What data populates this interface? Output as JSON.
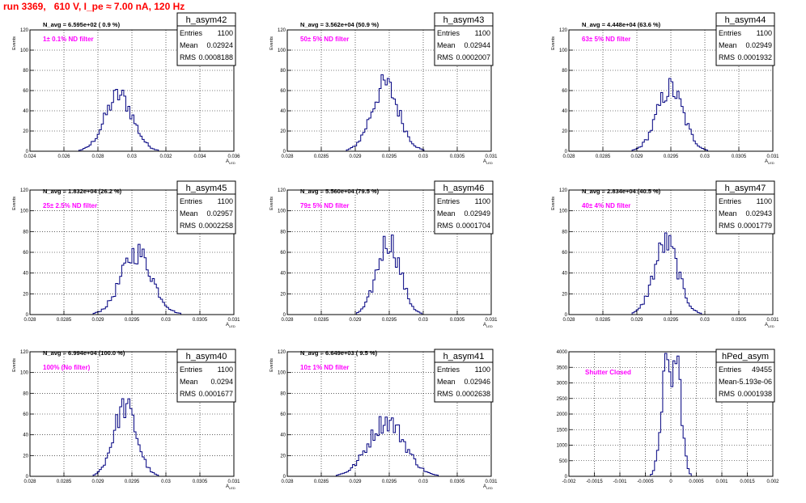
{
  "page_title": "run 3369,   610 V, I_pe ≈ 7.00 nA, 120 Hz",
  "colors": {
    "hist_line": "#000080",
    "title_red": "#ff0000",
    "annotation_magenta": "#ff00ff",
    "frame": "#000000",
    "grid": "#000000"
  },
  "chart_data": [
    {
      "type": "bar",
      "name": "h_asym42",
      "stats": {
        "entries_label": "Entries",
        "entries": "1100",
        "mean_label": "Mean",
        "mean": "0.02924",
        "rms_label": "RMS",
        "rms": "0.0008188"
      },
      "n_avg_label": "N_avg = 6.595e+02 ( 0.9 %)",
      "filter_label": "1± 0.1% ND filter",
      "xlabel": "A_{LED}",
      "ylabel": "Events",
      "xlim": [
        0.024,
        0.036
      ],
      "ylim": [
        0,
        120
      ],
      "xticks": [
        "0.024",
        "0.026",
        "0.028",
        "0.03",
        "0.032",
        "0.034",
        "0.036"
      ],
      "xtick_values": [
        0.024,
        0.026,
        0.028,
        0.03,
        0.032,
        0.034,
        0.036
      ],
      "yticks": [
        "0",
        "20",
        "40",
        "60",
        "80",
        "100",
        "120"
      ],
      "grid": true,
      "mean_value": 0.02924,
      "rms_value": 0.0008188,
      "peak": 64
    },
    {
      "type": "bar",
      "name": "h_asym43",
      "stats": {
        "entries_label": "Entries",
        "entries": "1100",
        "mean_label": "Mean",
        "mean": "0.02944",
        "rms_label": "RMS",
        "rms": "0.0002007"
      },
      "n_avg_label": "N_avg = 3.562e+04 (50.9 %)",
      "filter_label": "50± 5% ND filter",
      "xlabel": "A_{LED}",
      "ylabel": "Events",
      "xlim": [
        0.028,
        0.031
      ],
      "ylim": [
        0,
        120
      ],
      "xticks": [
        "0.028",
        "0.0285",
        "0.029",
        "0.0295",
        "0.03",
        "0.0305",
        "0.031"
      ],
      "xtick_values": [
        0.028,
        0.0285,
        0.029,
        0.0295,
        0.03,
        0.0305,
        0.031
      ],
      "yticks": [
        "0",
        "20",
        "40",
        "60",
        "80",
        "100",
        "120"
      ],
      "grid": true,
      "mean_value": 0.02944,
      "rms_value": 0.0002007,
      "peak": 76
    },
    {
      "type": "bar",
      "name": "h_asym44",
      "stats": {
        "entries_label": "Entries",
        "entries": "1100",
        "mean_label": "Mean",
        "mean": "0.02949",
        "rms_label": "RMS",
        "rms": "0.0001932"
      },
      "n_avg_label": "N_avg = 4.448e+04 (63.6 %)",
      "filter_label": "63± 5% ND filter",
      "xlabel": "A_{LED}",
      "ylabel": "Events",
      "xlim": [
        0.028,
        0.031
      ],
      "ylim": [
        0,
        120
      ],
      "xticks": [
        "0.028",
        "0.0285",
        "0.029",
        "0.0295",
        "0.03",
        "0.0305",
        "0.031"
      ],
      "xtick_values": [
        0.028,
        0.0285,
        0.029,
        0.0295,
        0.03,
        0.0305,
        0.031
      ],
      "yticks": [
        "0",
        "20",
        "40",
        "60",
        "80",
        "100",
        "120"
      ],
      "grid": true,
      "mean_value": 0.02949,
      "rms_value": 0.0001932,
      "peak": 72
    },
    {
      "type": "bar",
      "name": "h_asym45",
      "stats": {
        "entries_label": "Entries",
        "entries": "1100",
        "mean_label": "Mean",
        "mean": "0.02957",
        "rms_label": "RMS",
        "rms": "0.0002258"
      },
      "n_avg_label": "N_avg = 1.832e+04 (26.2 %)",
      "filter_label": "25± 2.5% ND filter",
      "xlabel": "A_{LED}",
      "ylabel": "Events",
      "xlim": [
        0.028,
        0.031
      ],
      "ylim": [
        0,
        120
      ],
      "xticks": [
        "0.028",
        "0.0285",
        "0.029",
        "0.0295",
        "0.03",
        "0.0305",
        "0.031"
      ],
      "xtick_values": [
        0.028,
        0.0285,
        0.029,
        0.0295,
        0.03,
        0.0305,
        0.031
      ],
      "yticks": [
        "0",
        "20",
        "40",
        "60",
        "80",
        "100",
        "120"
      ],
      "grid": true,
      "mean_value": 0.02957,
      "rms_value": 0.0002258,
      "peak": 70
    },
    {
      "type": "bar",
      "name": "h_asym46",
      "stats": {
        "entries_label": "Entries",
        "entries": "1100",
        "mean_label": "Mean",
        "mean": "0.02949",
        "rms_label": "RMS",
        "rms": "0.0001704"
      },
      "n_avg_label": "N_avg = 5.560e+04 (79.5 %)",
      "filter_label": "79± 5% ND filter",
      "xlabel": "A_{LED}",
      "ylabel": "Events",
      "xlim": [
        0.028,
        0.031
      ],
      "ylim": [
        0,
        120
      ],
      "xticks": [
        "0.028",
        "0.0285",
        "0.029",
        "0.0295",
        "0.03",
        "0.0305",
        "0.031"
      ],
      "xtick_values": [
        0.028,
        0.0285,
        0.029,
        0.0295,
        0.03,
        0.0305,
        0.031
      ],
      "yticks": [
        "0",
        "20",
        "40",
        "60",
        "80",
        "100",
        "120"
      ],
      "grid": true,
      "mean_value": 0.02949,
      "rms_value": 0.0001704,
      "peak": 83
    },
    {
      "type": "bar",
      "name": "h_asym47",
      "stats": {
        "entries_label": "Entries",
        "entries": "1100",
        "mean_label": "Mean",
        "mean": "0.02943",
        "rms_label": "RMS",
        "rms": "0.0001779"
      },
      "n_avg_label": "N_avg = 2.834e+04 (40.5 %)",
      "filter_label": "40± 4% ND filter",
      "xlabel": "A_{LED}",
      "ylabel": "Events",
      "xlim": [
        0.028,
        0.031
      ],
      "ylim": [
        0,
        120
      ],
      "xticks": [
        "0.028",
        "0.0285",
        "0.029",
        "0.0295",
        "0.03",
        "0.0305",
        "0.031"
      ],
      "xtick_values": [
        0.028,
        0.0285,
        0.029,
        0.0295,
        0.03,
        0.0305,
        0.031
      ],
      "yticks": [
        "0",
        "20",
        "40",
        "60",
        "80",
        "100",
        "120"
      ],
      "grid": true,
      "mean_value": 0.02943,
      "rms_value": 0.0001779,
      "peak": 80
    },
    {
      "type": "bar",
      "name": "h_asym40",
      "stats": {
        "entries_label": "Entries",
        "entries": "1100",
        "mean_label": "Mean",
        "mean": "0.0294",
        "rms_label": "RMS",
        "rms": "0.0001677"
      },
      "n_avg_label": "N_avg = 6.994e+04 (100.0 %)",
      "filter_label": "100% (No filter)",
      "xlabel": "A_{LED}",
      "ylabel": "Events",
      "xlim": [
        0.028,
        0.031
      ],
      "ylim": [
        0,
        120
      ],
      "xticks": [
        "0.028",
        "0.0285",
        "0.029",
        "0.0295",
        "0.03",
        "0.0305",
        "0.031"
      ],
      "xtick_values": [
        0.028,
        0.0285,
        0.029,
        0.0295,
        0.03,
        0.0305,
        0.031
      ],
      "yticks": [
        "0",
        "20",
        "40",
        "60",
        "80",
        "100",
        "120"
      ],
      "grid": true,
      "mean_value": 0.0294,
      "rms_value": 0.0001677,
      "peak": 78
    },
    {
      "type": "bar",
      "name": "h_asym41",
      "stats": {
        "entries_label": "Entries",
        "entries": "1100",
        "mean_label": "Mean",
        "mean": "0.02946",
        "rms_label": "RMS",
        "rms": "0.0002638"
      },
      "n_avg_label": "N_avg = 6.649e+03 ( 9.5 %)",
      "filter_label": "10± 1% ND filter",
      "xlabel": "A_{LED}",
      "ylabel": "Events",
      "xlim": [
        0.028,
        0.031
      ],
      "ylim": [
        0,
        120
      ],
      "xticks": [
        "0.028",
        "0.0285",
        "0.029",
        "0.0295",
        "0.03",
        "0.0305",
        "0.031"
      ],
      "xtick_values": [
        0.028,
        0.0285,
        0.029,
        0.0295,
        0.03,
        0.0305,
        0.031
      ],
      "yticks": [
        "0",
        "20",
        "40",
        "60",
        "80",
        "100",
        "120"
      ],
      "grid": true,
      "mean_value": 0.02946,
      "rms_value": 0.0002638,
      "peak": 62
    },
    {
      "type": "bar",
      "name": "hPed_asym",
      "stats": {
        "entries_label": "Entries",
        "entries": "49455",
        "mean_label": "Mean",
        "mean": "-5.193e-06",
        "rms_label": "RMS",
        "rms": "0.0001938"
      },
      "n_avg_label": "",
      "filter_label": "Shutter Closed",
      "xlabel": "",
      "ylabel": "",
      "xlim": [
        -0.002,
        0.002
      ],
      "ylim": [
        0,
        4000
      ],
      "xticks": [
        "-0.002",
        "-0.0015",
        "-0.001",
        "-0.0005",
        "0",
        "0.0005",
        "0.001",
        "0.0015",
        "0.002"
      ],
      "xtick_values": [
        -0.002,
        -0.0015,
        -0.001,
        -0.0005,
        0,
        0.0005,
        0.001,
        0.0015,
        0.002
      ],
      "yticks": [
        "0",
        "500",
        "1000",
        "1500",
        "2000",
        "2500",
        "3000",
        "3500",
        "4000"
      ],
      "grid": true,
      "mean_value": -5.2e-06,
      "rms_value": 0.0001938,
      "peak": 3800,
      "bimodal": true,
      "modes": [
        -0.00011,
        0.00012
      ],
      "mode_sigma": 9.5e-05
    }
  ]
}
